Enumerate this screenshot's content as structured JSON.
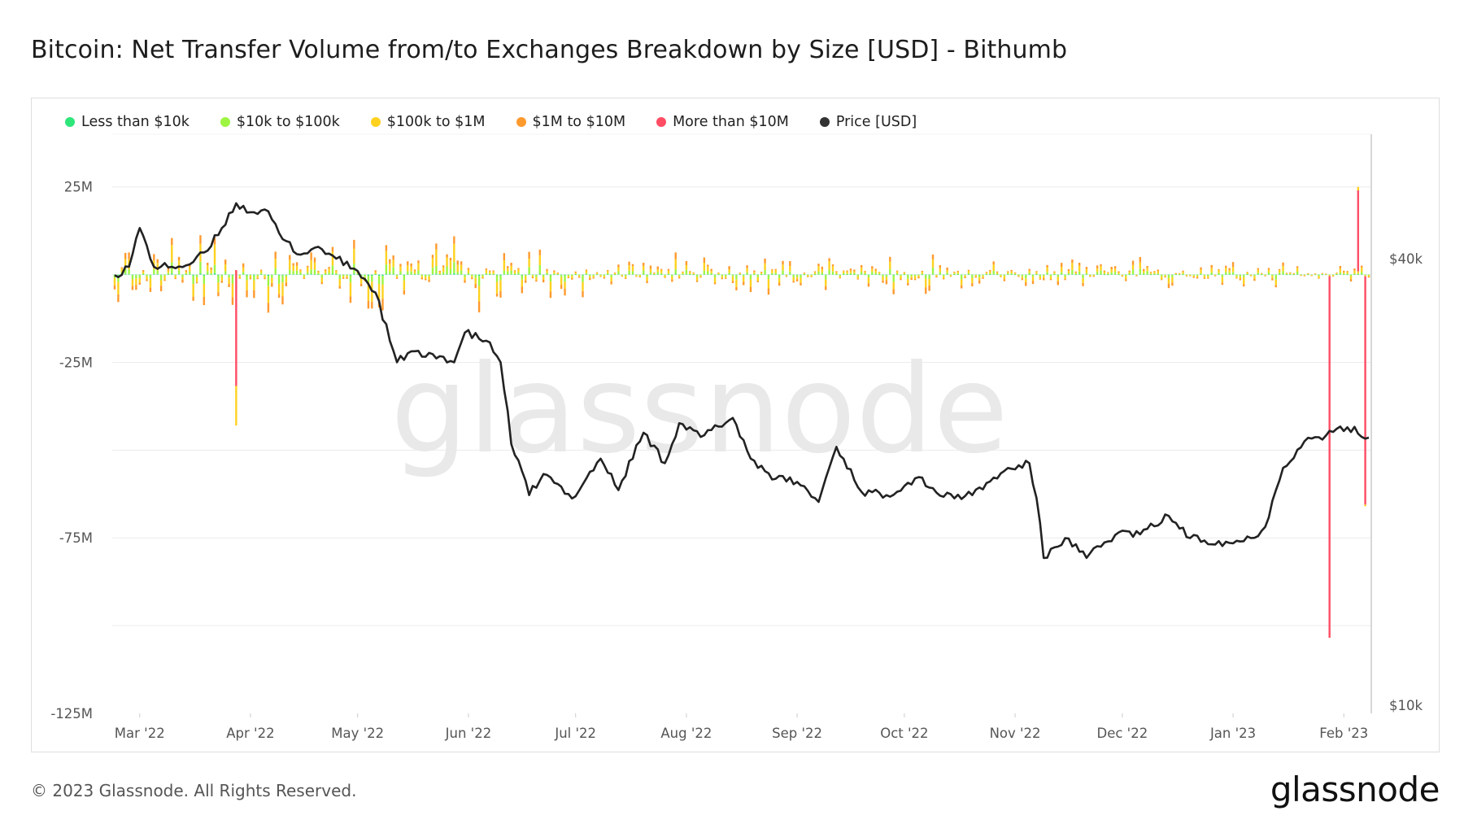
{
  "title": "Bitcoin: Net Transfer Volume from/to Exchanges Breakdown by Size [USD] - Bithumb",
  "footer": "© 2023 Glassnode. All Rights Reserved.",
  "brand": "glassnode",
  "watermark": "glassnode",
  "colors": {
    "less_than_10k": "#2ee67a",
    "10k_to_100k": "#9df542",
    "100k_to_1m": "#ffd21f",
    "1m_to_10m": "#ff9a2e",
    "more_than_10m": "#ff4d64",
    "price": "#222222"
  },
  "chart_data": {
    "type": "bar",
    "stacked": true,
    "title": "Bitcoin: Net Transfer Volume from/to Exchanges Breakdown by Size [USD] - Bithumb",
    "legend_position": "top-left",
    "grid": true,
    "x_ticks": [
      "Mar '22",
      "Apr '22",
      "May '22",
      "Jun '22",
      "Jul '22",
      "Aug '22",
      "Sep '22",
      "Oct '22",
      "Nov '22",
      "Dec '22",
      "Jan '23",
      "Feb '23"
    ],
    "x_range": [
      "2022-02-22",
      "2023-02-08"
    ],
    "y_left": {
      "ticks": [
        "25M",
        "-25M",
        "-75M",
        "-125M"
      ],
      "range": [
        -125000000,
        40000000
      ]
    },
    "y_right": {
      "ticks": [
        "$40k",
        "$10k"
      ],
      "scale": "log",
      "range": [
        10000,
        80000
      ]
    },
    "series": [
      {
        "name": "Less than $10k",
        "color": "#2ee67a"
      },
      {
        "name": "$10k to $100k",
        "color": "#9df542"
      },
      {
        "name": "$100k to $1M",
        "color": "#ffd21f"
      },
      {
        "name": "$1M to $10M",
        "color": "#ff9a2e"
      },
      {
        "name": "More than $10M",
        "color": "#ff4d64"
      },
      {
        "name": "Price [USD]",
        "color": "#222222",
        "axis": "right",
        "type": "line"
      }
    ],
    "notable_bars": [
      {
        "date": "2022-03-28",
        "more_than_10m": -33000000,
        "total": -43000000
      },
      {
        "date": "2023-01-28",
        "more_than_10m": -103000000
      },
      {
        "date": "2023-02-05",
        "more_than_10m": 23000000,
        "total": 25000000
      },
      {
        "date": "2023-02-07",
        "more_than_10m": -65000000,
        "total": -66000000
      }
    ],
    "price_points": [
      [
        "2022-02-22",
        38000
      ],
      [
        "2022-02-26",
        39000
      ],
      [
        "2022-03-01",
        44000
      ],
      [
        "2022-03-05",
        39000
      ],
      [
        "2022-03-10",
        39000
      ],
      [
        "2022-03-15",
        39300
      ],
      [
        "2022-03-20",
        41000
      ],
      [
        "2022-03-24",
        44000
      ],
      [
        "2022-03-28",
        47500
      ],
      [
        "2022-04-01",
        46200
      ],
      [
        "2022-04-05",
        46600
      ],
      [
        "2022-04-10",
        42500
      ],
      [
        "2022-04-15",
        40500
      ],
      [
        "2022-04-20",
        41500
      ],
      [
        "2022-04-25",
        40000
      ],
      [
        "2022-05-01",
        38500
      ],
      [
        "2022-05-06",
        36000
      ],
      [
        "2022-05-10",
        31000
      ],
      [
        "2022-05-12",
        29000
      ],
      [
        "2022-05-16",
        30000
      ],
      [
        "2022-05-20",
        29500
      ],
      [
        "2022-05-25",
        29500
      ],
      [
        "2022-05-28",
        29000
      ],
      [
        "2022-05-31",
        31800
      ],
      [
        "2022-06-06",
        31000
      ],
      [
        "2022-06-10",
        29000
      ],
      [
        "2022-06-13",
        22500
      ],
      [
        "2022-06-18",
        19200
      ],
      [
        "2022-06-22",
        20500
      ],
      [
        "2022-06-30",
        19000
      ],
      [
        "2022-07-08",
        21500
      ],
      [
        "2022-07-13",
        19500
      ],
      [
        "2022-07-20",
        23300
      ],
      [
        "2022-07-26",
        21200
      ],
      [
        "2022-07-30",
        24000
      ],
      [
        "2022-08-05",
        23000
      ],
      [
        "2022-08-14",
        24400
      ],
      [
        "2022-08-19",
        21500
      ],
      [
        "2022-08-26",
        20200
      ],
      [
        "2022-09-01",
        20000
      ],
      [
        "2022-09-07",
        18800
      ],
      [
        "2022-09-12",
        22300
      ],
      [
        "2022-09-19",
        19400
      ],
      [
        "2022-09-26",
        19200
      ],
      [
        "2022-10-05",
        20300
      ],
      [
        "2022-10-12",
        19100
      ],
      [
        "2022-10-20",
        19200
      ],
      [
        "2022-10-29",
        20700
      ],
      [
        "2022-11-05",
        21200
      ],
      [
        "2022-11-08",
        17600
      ],
      [
        "2022-11-09",
        15800
      ],
      [
        "2022-11-15",
        16800
      ],
      [
        "2022-11-21",
        15800
      ],
      [
        "2022-11-30",
        17100
      ],
      [
        "2022-12-06",
        17000
      ],
      [
        "2022-12-14",
        18000
      ],
      [
        "2022-12-20",
        16800
      ],
      [
        "2022-12-31",
        16550
      ],
      [
        "2023-01-06",
        16800
      ],
      [
        "2023-01-10",
        17400
      ],
      [
        "2023-01-13",
        19500
      ],
      [
        "2023-01-15",
        20900
      ],
      [
        "2023-01-21",
        22700
      ],
      [
        "2023-01-27",
        23100
      ],
      [
        "2023-02-02",
        23700
      ],
      [
        "2023-02-08",
        22950
      ]
    ]
  }
}
